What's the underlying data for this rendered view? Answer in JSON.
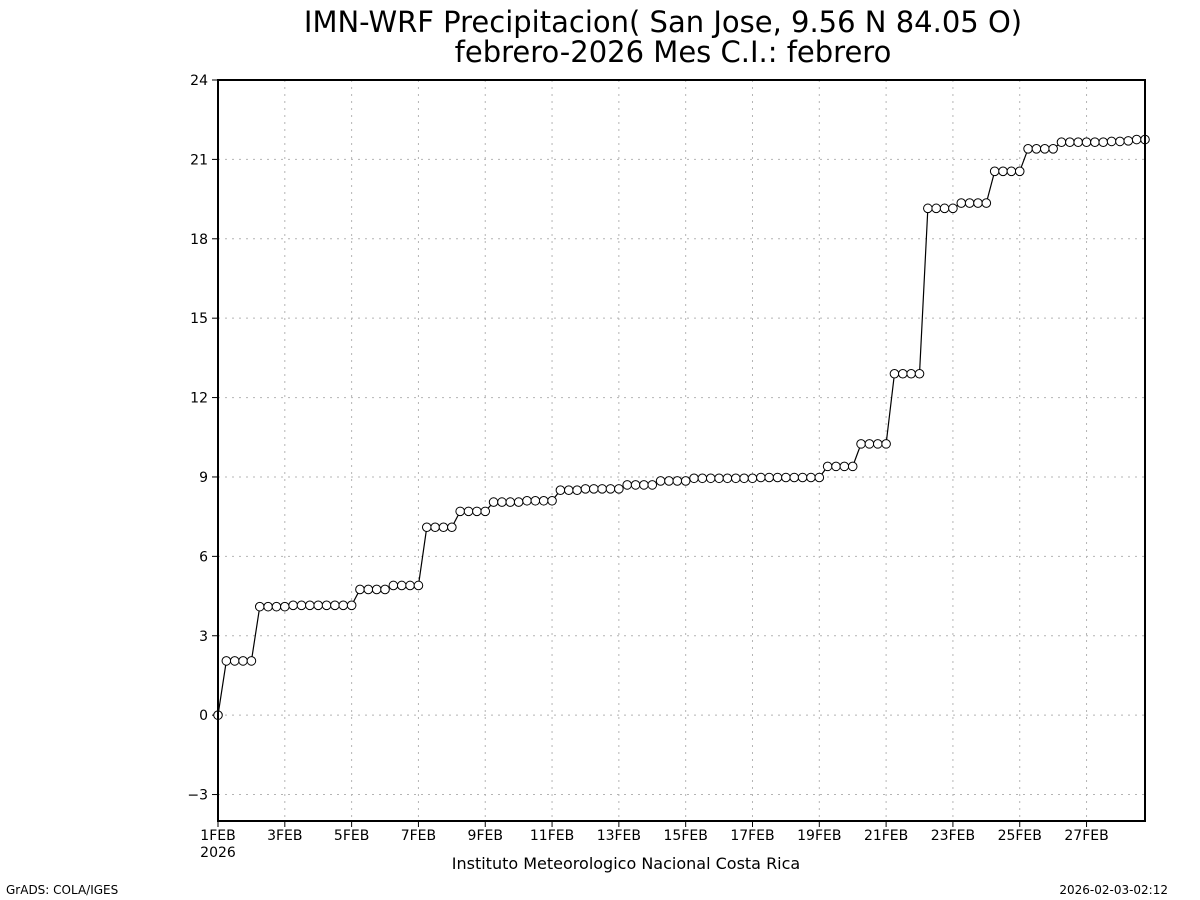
{
  "header": {
    "title_line1": "IMN-WRF  Precipitacion( San Jose, 9.56  N 84.05  O)",
    "title_line2": "febrero-2026 Mes C.I.: febrero"
  },
  "footer": {
    "institute": "Instituto Meteorologico Nacional Costa Rica",
    "left_credit": "GrADS: COLA/IGES",
    "timestamp": "2026-02-03-02:12"
  },
  "colors": {
    "line": "#000000",
    "marker_fill": "#ffffff",
    "grid": "#b4b4b4",
    "axis": "#000000"
  },
  "chart_data": {
    "type": "line",
    "title": "IMN-WRF  Precipitacion( San Jose, 9.56  N 84.05  O)",
    "subtitle": "febrero-2026 Mes C.I.: febrero",
    "xlabel": "",
    "ylabel": "",
    "x_units": "days since 1FEB2026",
    "xlim": [
      0,
      27.75
    ],
    "ylim": [
      -4,
      24
    ],
    "yticks": [
      -3,
      0,
      3,
      6,
      9,
      12,
      15,
      18,
      21,
      24
    ],
    "xticks": [
      {
        "x": 0,
        "label": "1FEB",
        "sublabel": "2026"
      },
      {
        "x": 2,
        "label": "3FEB",
        "sublabel": ""
      },
      {
        "x": 4,
        "label": "5FEB",
        "sublabel": ""
      },
      {
        "x": 6,
        "label": "7FEB",
        "sublabel": ""
      },
      {
        "x": 8,
        "label": "9FEB",
        "sublabel": ""
      },
      {
        "x": 10,
        "label": "11FEB",
        "sublabel": ""
      },
      {
        "x": 12,
        "label": "13FEB",
        "sublabel": ""
      },
      {
        "x": 14,
        "label": "15FEB",
        "sublabel": ""
      },
      {
        "x": 16,
        "label": "17FEB",
        "sublabel": ""
      },
      {
        "x": 18,
        "label": "19FEB",
        "sublabel": ""
      },
      {
        "x": 20,
        "label": "21FEB",
        "sublabel": ""
      },
      {
        "x": 22,
        "label": "23FEB",
        "sublabel": ""
      },
      {
        "x": 24,
        "label": "25FEB",
        "sublabel": ""
      },
      {
        "x": 26,
        "label": "27FEB",
        "sublabel": ""
      }
    ],
    "grid": true,
    "marker": "open-circle",
    "series": [
      {
        "name": "",
        "step_days": 0.25,
        "values": [
          0.0,
          2.05,
          2.05,
          2.05,
          2.05,
          4.1,
          4.1,
          4.1,
          4.1,
          4.15,
          4.15,
          4.15,
          4.15,
          4.15,
          4.15,
          4.15,
          4.15,
          4.75,
          4.75,
          4.75,
          4.75,
          4.9,
          4.9,
          4.9,
          4.9,
          7.1,
          7.1,
          7.1,
          7.1,
          7.7,
          7.7,
          7.7,
          7.7,
          8.05,
          8.05,
          8.05,
          8.05,
          8.1,
          8.1,
          8.1,
          8.1,
          8.5,
          8.5,
          8.5,
          8.55,
          8.55,
          8.55,
          8.55,
          8.55,
          8.7,
          8.7,
          8.7,
          8.7,
          8.85,
          8.85,
          8.85,
          8.85,
          8.95,
          8.95,
          8.95,
          8.95,
          8.95,
          8.95,
          8.95,
          8.95,
          8.98,
          8.98,
          8.98,
          8.98,
          8.98,
          8.98,
          8.98,
          8.98,
          9.4,
          9.4,
          9.4,
          9.4,
          10.25,
          10.25,
          10.25,
          10.25,
          12.9,
          12.9,
          12.9,
          12.9,
          19.15,
          19.15,
          19.15,
          19.15,
          19.35,
          19.35,
          19.35,
          19.35,
          20.55,
          20.55,
          20.55,
          20.55,
          21.4,
          21.4,
          21.4,
          21.4,
          21.65,
          21.65,
          21.65,
          21.65,
          21.65,
          21.65,
          21.68,
          21.68,
          21.7,
          21.75,
          21.75
        ]
      }
    ]
  }
}
